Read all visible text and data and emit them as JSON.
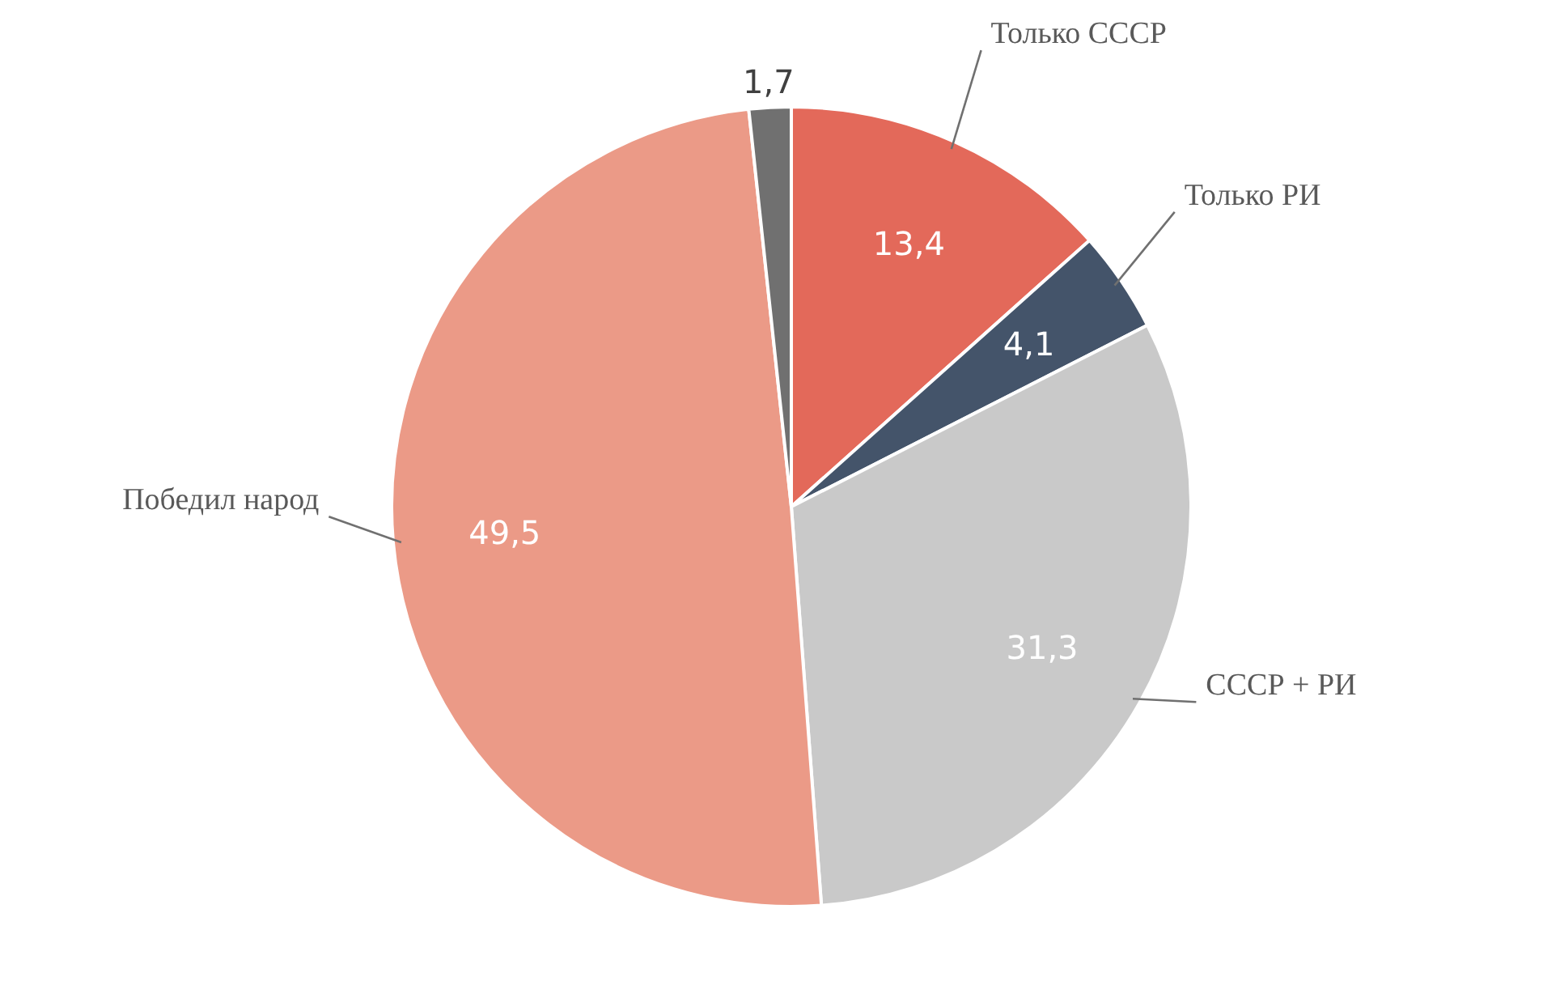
{
  "chart_data": {
    "type": "pie",
    "categories": [
      "Только СССР",
      "Только РИ",
      "СССР + РИ",
      "Победил народ",
      null
    ],
    "values": [
      13.4,
      4.1,
      31.3,
      49.5,
      1.7
    ],
    "colors": [
      "#e3695a",
      "#44546a",
      "#c9c9c9",
      "#eb9a87",
      "#707070"
    ],
    "value_labels": [
      "13,4",
      "4,1",
      "31,3",
      "49,5",
      "1,7"
    ]
  }
}
